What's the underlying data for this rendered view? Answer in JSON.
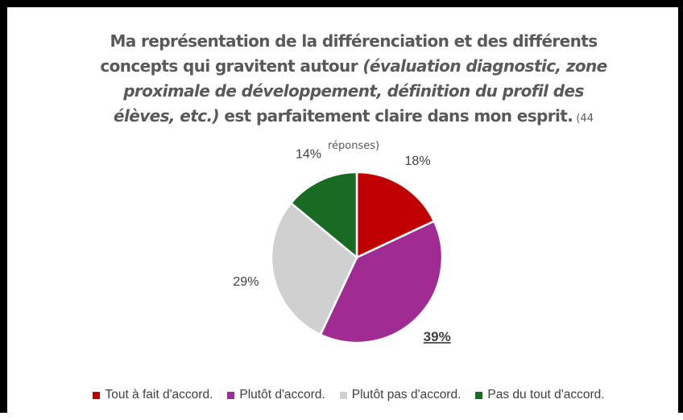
{
  "chart_data": {
    "type": "pie",
    "title_parts": [
      {
        "text": "Ma représentation de la différenciation et des différents concepts qui gravitent autour ",
        "style": "bold"
      },
      {
        "text": "(évaluation diagnostic, zone proximale de développement, définition du profil des élèves, etc.)",
        "style": "bold-italic"
      },
      {
        "text": " est parfaitement claire dans mon esprit.",
        "style": "bold"
      },
      {
        "text": " (44 réponses)",
        "style": "small"
      }
    ],
    "categories": [
      "Tout à fait d'accord.",
      "Plutôt d'accord.",
      "Plutôt pas d'accord.",
      "Pas du tout d'accord."
    ],
    "values": [
      18,
      39,
      29,
      14
    ],
    "value_labels": [
      "18%",
      "39%",
      "29%",
      "14%"
    ],
    "colors": [
      "#c00000",
      "#a02b93",
      "#d0d0d0",
      "#196b24"
    ],
    "emphasized": 1,
    "legend": "bottom"
  }
}
